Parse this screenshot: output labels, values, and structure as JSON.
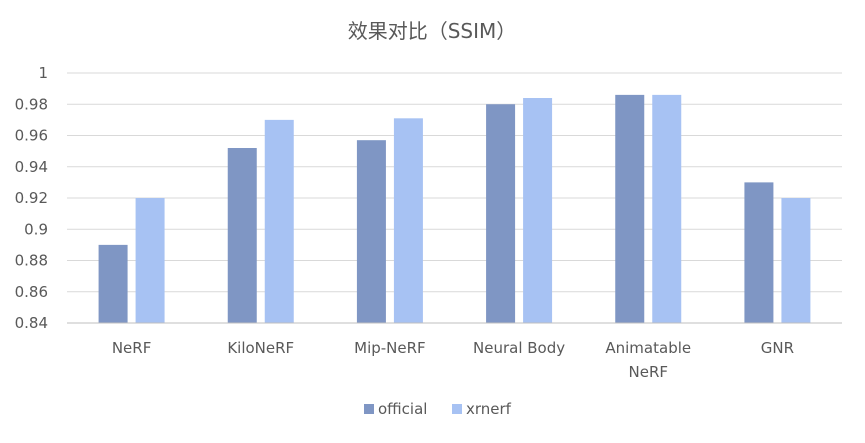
{
  "chart_data": {
    "type": "bar",
    "title": "效果对比（SSIM）",
    "categories": [
      [
        "NeRF"
      ],
      [
        "KiloNeRF"
      ],
      [
        "Mip-NeRF"
      ],
      [
        "Neural Body"
      ],
      [
        "Animatable",
        "NeRF"
      ],
      [
        "GNR"
      ]
    ],
    "series": [
      {
        "name": "official",
        "color": "#7f96c4",
        "values": [
          0.89,
          0.952,
          0.957,
          0.98,
          0.986,
          0.93
        ]
      },
      {
        "name": "xrnerf",
        "color": "#a7c2f3",
        "values": [
          0.92,
          0.97,
          0.971,
          0.984,
          0.986,
          0.92
        ]
      }
    ],
    "ylim": [
      0.84,
      1.0
    ],
    "yticks": [
      "0.84",
      "0.86",
      "0.88",
      "0.9",
      "0.92",
      "0.94",
      "0.96",
      "0.98",
      "1"
    ],
    "grid": true,
    "legend_position": "bottom"
  }
}
